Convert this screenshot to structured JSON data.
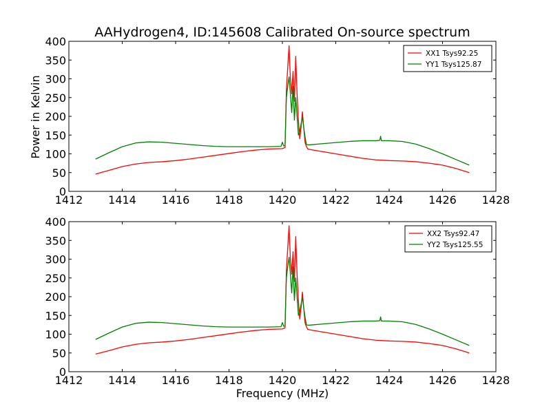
{
  "figure": {
    "title": "AAHydrogen4, ID:145608 Calibrated On-source spectrum",
    "xlabel": "Frequency (MHz)",
    "ylabel": "Power in Kelvin"
  },
  "colors": {
    "xx": "#ff0000",
    "yy": "#008000",
    "axes": "#000000",
    "background": "#ffffff"
  },
  "chart_data": [
    {
      "type": "line",
      "title": "AAHydrogen4, ID:145608 Calibrated On-source spectrum",
      "xlabel": "",
      "ylabel": "Power in Kelvin",
      "xlim": [
        1412,
        1428
      ],
      "ylim": [
        0,
        400
      ],
      "xticks": [
        1412,
        1414,
        1416,
        1418,
        1420,
        1422,
        1424,
        1426,
        1428
      ],
      "yticks": [
        0,
        50,
        100,
        150,
        200,
        250,
        300,
        350,
        400
      ],
      "legend_position": "top-right",
      "series": [
        {
          "name": "XX1 Tsys92.25",
          "color": "#ff0000",
          "x": [
            1413.0,
            1413.5,
            1414.0,
            1414.5,
            1415.0,
            1415.5,
            1416.0,
            1416.5,
            1417.0,
            1417.5,
            1418.0,
            1418.5,
            1419.0,
            1419.5,
            1420.0,
            1420.1,
            1420.15,
            1420.2,
            1420.25,
            1420.3,
            1420.35,
            1420.4,
            1420.45,
            1420.5,
            1420.55,
            1420.6,
            1420.65,
            1420.7,
            1420.75,
            1420.8,
            1420.85,
            1420.9,
            1420.95,
            1421.0,
            1421.5,
            1422.0,
            1422.5,
            1423.0,
            1423.5,
            1424.0,
            1424.5,
            1425.0,
            1425.5,
            1426.0,
            1426.5,
            1427.0
          ],
          "y": [
            46,
            56,
            66,
            73,
            77,
            79,
            82,
            86,
            91,
            96,
            101,
            106,
            110,
            113,
            114,
            117,
            270,
            330,
            388,
            300,
            260,
            320,
            240,
            360,
            260,
            190,
            140,
            170,
            212,
            170,
            130,
            120,
            113,
            112,
            106,
            100,
            94,
            88,
            84,
            82,
            81,
            79,
            75,
            70,
            61,
            50
          ]
        },
        {
          "name": "YY1 Tsys125.87",
          "color": "#008000",
          "x": [
            1413.0,
            1413.5,
            1414.0,
            1414.5,
            1415.0,
            1415.5,
            1416.0,
            1416.5,
            1417.0,
            1417.5,
            1418.0,
            1418.5,
            1419.0,
            1419.5,
            1419.95,
            1420.0,
            1420.05,
            1420.1,
            1420.15,
            1420.2,
            1420.25,
            1420.3,
            1420.35,
            1420.4,
            1420.45,
            1420.5,
            1420.55,
            1420.6,
            1420.65,
            1420.7,
            1420.75,
            1420.8,
            1420.85,
            1420.9,
            1420.95,
            1421.0,
            1421.5,
            1422.0,
            1422.5,
            1423.0,
            1423.5,
            1423.65,
            1423.68,
            1423.71,
            1424.0,
            1424.5,
            1425.0,
            1425.5,
            1426.0,
            1426.5,
            1427.0
          ],
          "y": [
            86,
            103,
            119,
            129,
            132,
            131,
            128,
            125,
            122,
            120,
            119,
            119,
            119,
            119,
            120,
            131,
            121,
            122,
            250,
            280,
            305,
            260,
            210,
            280,
            190,
            250,
            200,
            150,
            160,
            180,
            198,
            170,
            145,
            125,
            124,
            124,
            127,
            130,
            133,
            135,
            135,
            136,
            147,
            135,
            135,
            133,
            126,
            114,
            100,
            85,
            70
          ]
        }
      ]
    },
    {
      "type": "line",
      "title": "",
      "xlabel": "Frequency (MHz)",
      "ylabel": "",
      "xlim": [
        1412,
        1428
      ],
      "ylim": [
        0,
        400
      ],
      "xticks": [
        1412,
        1414,
        1416,
        1418,
        1420,
        1422,
        1424,
        1426,
        1428
      ],
      "yticks": [
        0,
        50,
        100,
        150,
        200,
        250,
        300,
        350,
        400
      ],
      "legend_position": "top-right",
      "series": [
        {
          "name": "XX2 Tsys92.47",
          "color": "#ff0000",
          "x": [
            1413.0,
            1413.5,
            1414.0,
            1414.5,
            1415.0,
            1415.5,
            1416.0,
            1416.5,
            1417.0,
            1417.5,
            1418.0,
            1418.5,
            1419.0,
            1419.5,
            1420.0,
            1420.1,
            1420.15,
            1420.2,
            1420.25,
            1420.3,
            1420.35,
            1420.4,
            1420.45,
            1420.5,
            1420.55,
            1420.6,
            1420.65,
            1420.7,
            1420.75,
            1420.8,
            1420.85,
            1420.9,
            1420.95,
            1421.0,
            1421.5,
            1422.0,
            1422.5,
            1423.0,
            1423.5,
            1424.0,
            1424.5,
            1425.0,
            1425.5,
            1426.0,
            1426.5,
            1427.0
          ],
          "y": [
            47,
            56,
            66,
            73,
            77,
            79,
            82,
            86,
            91,
            96,
            101,
            106,
            110,
            113,
            114,
            117,
            270,
            330,
            389,
            300,
            260,
            320,
            240,
            360,
            260,
            190,
            140,
            170,
            212,
            170,
            130,
            120,
            113,
            112,
            106,
            100,
            94,
            88,
            84,
            82,
            81,
            79,
            75,
            70,
            61,
            50
          ]
        },
        {
          "name": "YY2 Tsys125.55",
          "color": "#008000",
          "x": [
            1413.0,
            1413.5,
            1414.0,
            1414.5,
            1415.0,
            1415.5,
            1416.0,
            1416.5,
            1417.0,
            1417.5,
            1418.0,
            1418.5,
            1419.0,
            1419.5,
            1419.95,
            1420.0,
            1420.05,
            1420.1,
            1420.15,
            1420.2,
            1420.25,
            1420.3,
            1420.35,
            1420.4,
            1420.45,
            1420.5,
            1420.55,
            1420.6,
            1420.65,
            1420.7,
            1420.75,
            1420.8,
            1420.85,
            1420.9,
            1420.95,
            1421.0,
            1421.5,
            1422.0,
            1422.5,
            1423.0,
            1423.5,
            1423.65,
            1423.68,
            1423.71,
            1424.0,
            1424.5,
            1425.0,
            1425.5,
            1426.0,
            1426.5,
            1427.0
          ],
          "y": [
            86,
            103,
            119,
            129,
            132,
            131,
            128,
            125,
            122,
            120,
            119,
            119,
            119,
            119,
            120,
            131,
            121,
            122,
            250,
            280,
            305,
            260,
            210,
            280,
            190,
            250,
            200,
            150,
            160,
            180,
            198,
            170,
            145,
            125,
            124,
            124,
            127,
            130,
            133,
            135,
            135,
            136,
            146,
            135,
            135,
            133,
            126,
            114,
            100,
            85,
            70
          ]
        }
      ]
    }
  ]
}
